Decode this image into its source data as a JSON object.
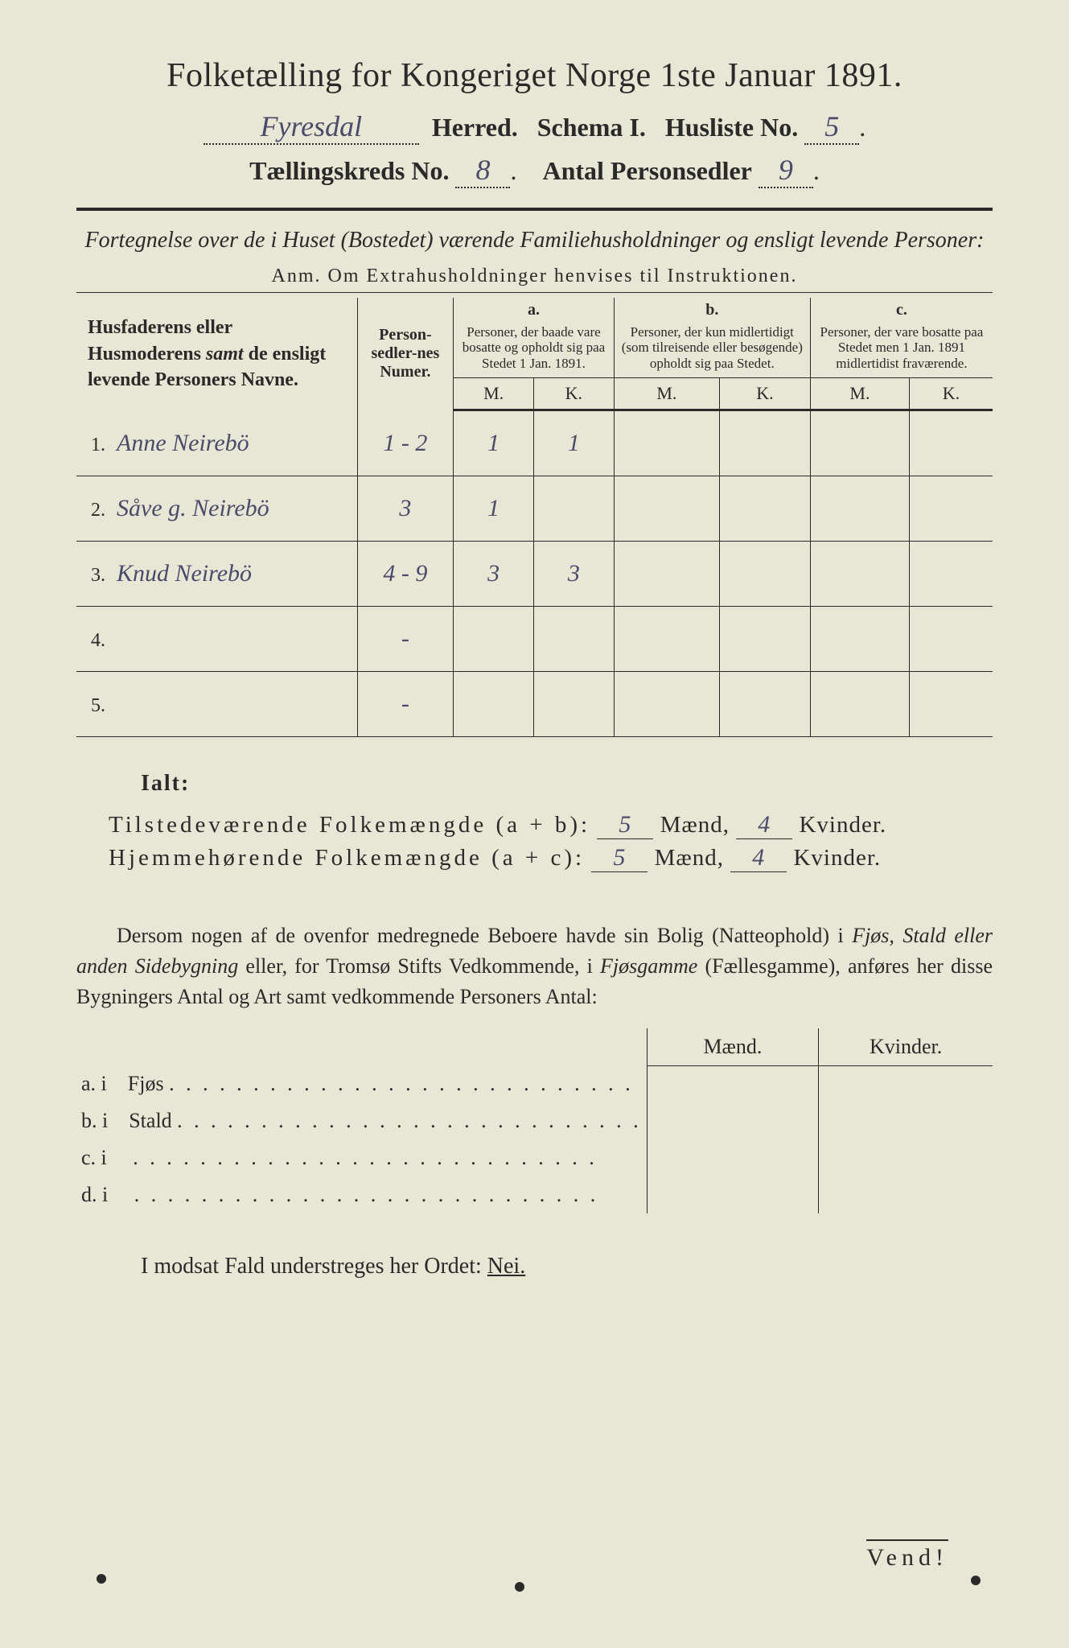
{
  "title": "Folketælling for Kongeriget Norge 1ste Januar 1891.",
  "header": {
    "herred_value": "Fyresdal",
    "herred_label": "Herred.",
    "schema_label": "Schema I.",
    "husliste_label": "Husliste No.",
    "husliste_value": "5",
    "kreds_label": "Tællingskreds No.",
    "kreds_value": "8",
    "personsedler_label": "Antal Personsedler",
    "personsedler_value": "9"
  },
  "subtitle": "Fortegnelse over de i Huset (Bostedet) værende Familiehusholdninger og ensligt levende Personer:",
  "anm": "Anm.  Om Extrahusholdninger henvises til Instruktionen.",
  "table": {
    "col_name": "Husfaderens eller Husmoderens samt de ensligt levende Personers Navne.",
    "col_numer": "Person-sedler-nes Numer.",
    "col_a_letter": "a.",
    "col_a": "Personer, der baade vare bosatte og opholdt sig paa Stedet 1 Jan. 1891.",
    "col_b_letter": "b.",
    "col_b": "Personer, der kun midlertidigt (som tilreisende eller besøgende) opholdt sig paa Stedet.",
    "col_c_letter": "c.",
    "col_c": "Personer, der vare bosatte paa Stedet men 1 Jan. 1891 midlertidist fraværende.",
    "mk_m": "M.",
    "mk_k": "K.",
    "rows": [
      {
        "n": "1.",
        "name": "Anne Neirebö",
        "numer": "1 - 2",
        "a_m": "1",
        "a_k": "1",
        "b_m": "",
        "b_k": "",
        "c_m": "",
        "c_k": ""
      },
      {
        "n": "2.",
        "name": "Såve g. Neirebö",
        "numer": "3",
        "a_m": "1",
        "a_k": "",
        "b_m": "",
        "b_k": "",
        "c_m": "",
        "c_k": ""
      },
      {
        "n": "3.",
        "name": "Knud Neirebö",
        "numer": "4 - 9",
        "a_m": "3",
        "a_k": "3",
        "b_m": "",
        "b_k": "",
        "c_m": "",
        "c_k": ""
      },
      {
        "n": "4.",
        "name": "",
        "numer": "-",
        "a_m": "",
        "a_k": "",
        "b_m": "",
        "b_k": "",
        "c_m": "",
        "c_k": ""
      },
      {
        "n": "5.",
        "name": "",
        "numer": "-",
        "a_m": "",
        "a_k": "",
        "b_m": "",
        "b_k": "",
        "c_m": "",
        "c_k": ""
      }
    ]
  },
  "ialt": "Ialt:",
  "totals": {
    "line1_label": "Tilstedeværende Folkemængde (a + b):",
    "line1_m": "5",
    "line1_k": "4",
    "line2_label": "Hjemmehørende Folkemængde (a + c):",
    "line2_m": "5",
    "line2_k": "4",
    "maend": "Mænd,",
    "kvinder": "Kvinder."
  },
  "para": "Dersom nogen af de ovenfor medregnede Beboere havde sin Bolig (Natteophold) i Fjøs, Stald eller anden Sidebygning eller, for Tromsø Stifts Vedkommende, i Fjøsgamme (Fællesgamme), anføres her disse Bygningers Antal og Art samt vedkommende Personers Antal:",
  "side": {
    "hdr_m": "Mænd.",
    "hdr_k": "Kvinder.",
    "rows": [
      {
        "l": "a.  i",
        "t": "Fjøs"
      },
      {
        "l": "b.  i",
        "t": "Stald"
      },
      {
        "l": "c.  i",
        "t": ""
      },
      {
        "l": "d.  i",
        "t": ""
      }
    ]
  },
  "nei_line_pre": "I modsat Fald understreges her Ordet: ",
  "nei": "Nei.",
  "vend": "Vend!",
  "colors": {
    "paper": "#e8e6d4",
    "ink": "#2a2a2a",
    "handwriting": "#4a4a6a"
  }
}
